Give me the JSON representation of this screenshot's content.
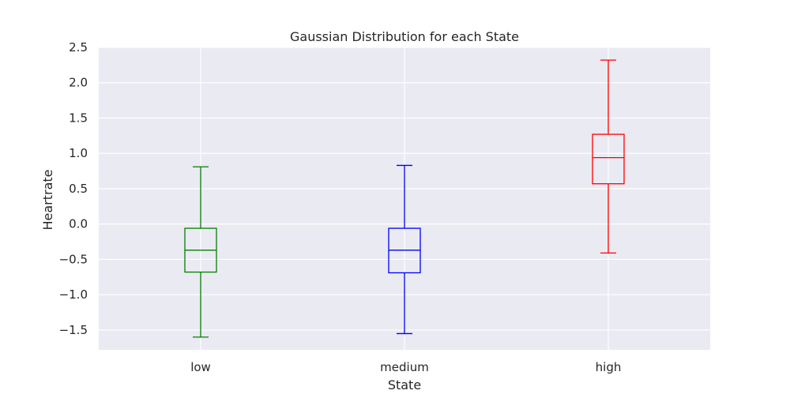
{
  "chart_data": {
    "type": "box",
    "title": "Gaussian Distribution for each State",
    "xlabel": "State",
    "ylabel": "Heartrate",
    "categories": [
      "low",
      "medium",
      "high"
    ],
    "ylim": [
      -1.78,
      2.5
    ],
    "yticks": [
      -1.5,
      -1.0,
      -0.5,
      0.0,
      0.5,
      1.0,
      1.5,
      2.0,
      2.5
    ],
    "ytick_labels": [
      "−1.5",
      "−1.0",
      "−0.5",
      "0.0",
      "0.5",
      "1.0",
      "1.5",
      "2.0",
      "2.5"
    ],
    "grid": true,
    "background": "#eaeaf2",
    "boxes": [
      {
        "category": "low",
        "whisker_low": -1.6,
        "q1": -0.68,
        "median": -0.37,
        "q3": -0.06,
        "whisker_high": 0.81,
        "color": "#008000"
      },
      {
        "category": "medium",
        "whisker_low": -1.55,
        "q1": -0.69,
        "median": -0.37,
        "q3": -0.06,
        "whisker_high": 0.83,
        "color": "#0000ff"
      },
      {
        "category": "high",
        "whisker_low": -0.41,
        "q1": 0.57,
        "median": 0.94,
        "q3": 1.27,
        "whisker_high": 2.32,
        "color": "#ff0000"
      }
    ]
  }
}
